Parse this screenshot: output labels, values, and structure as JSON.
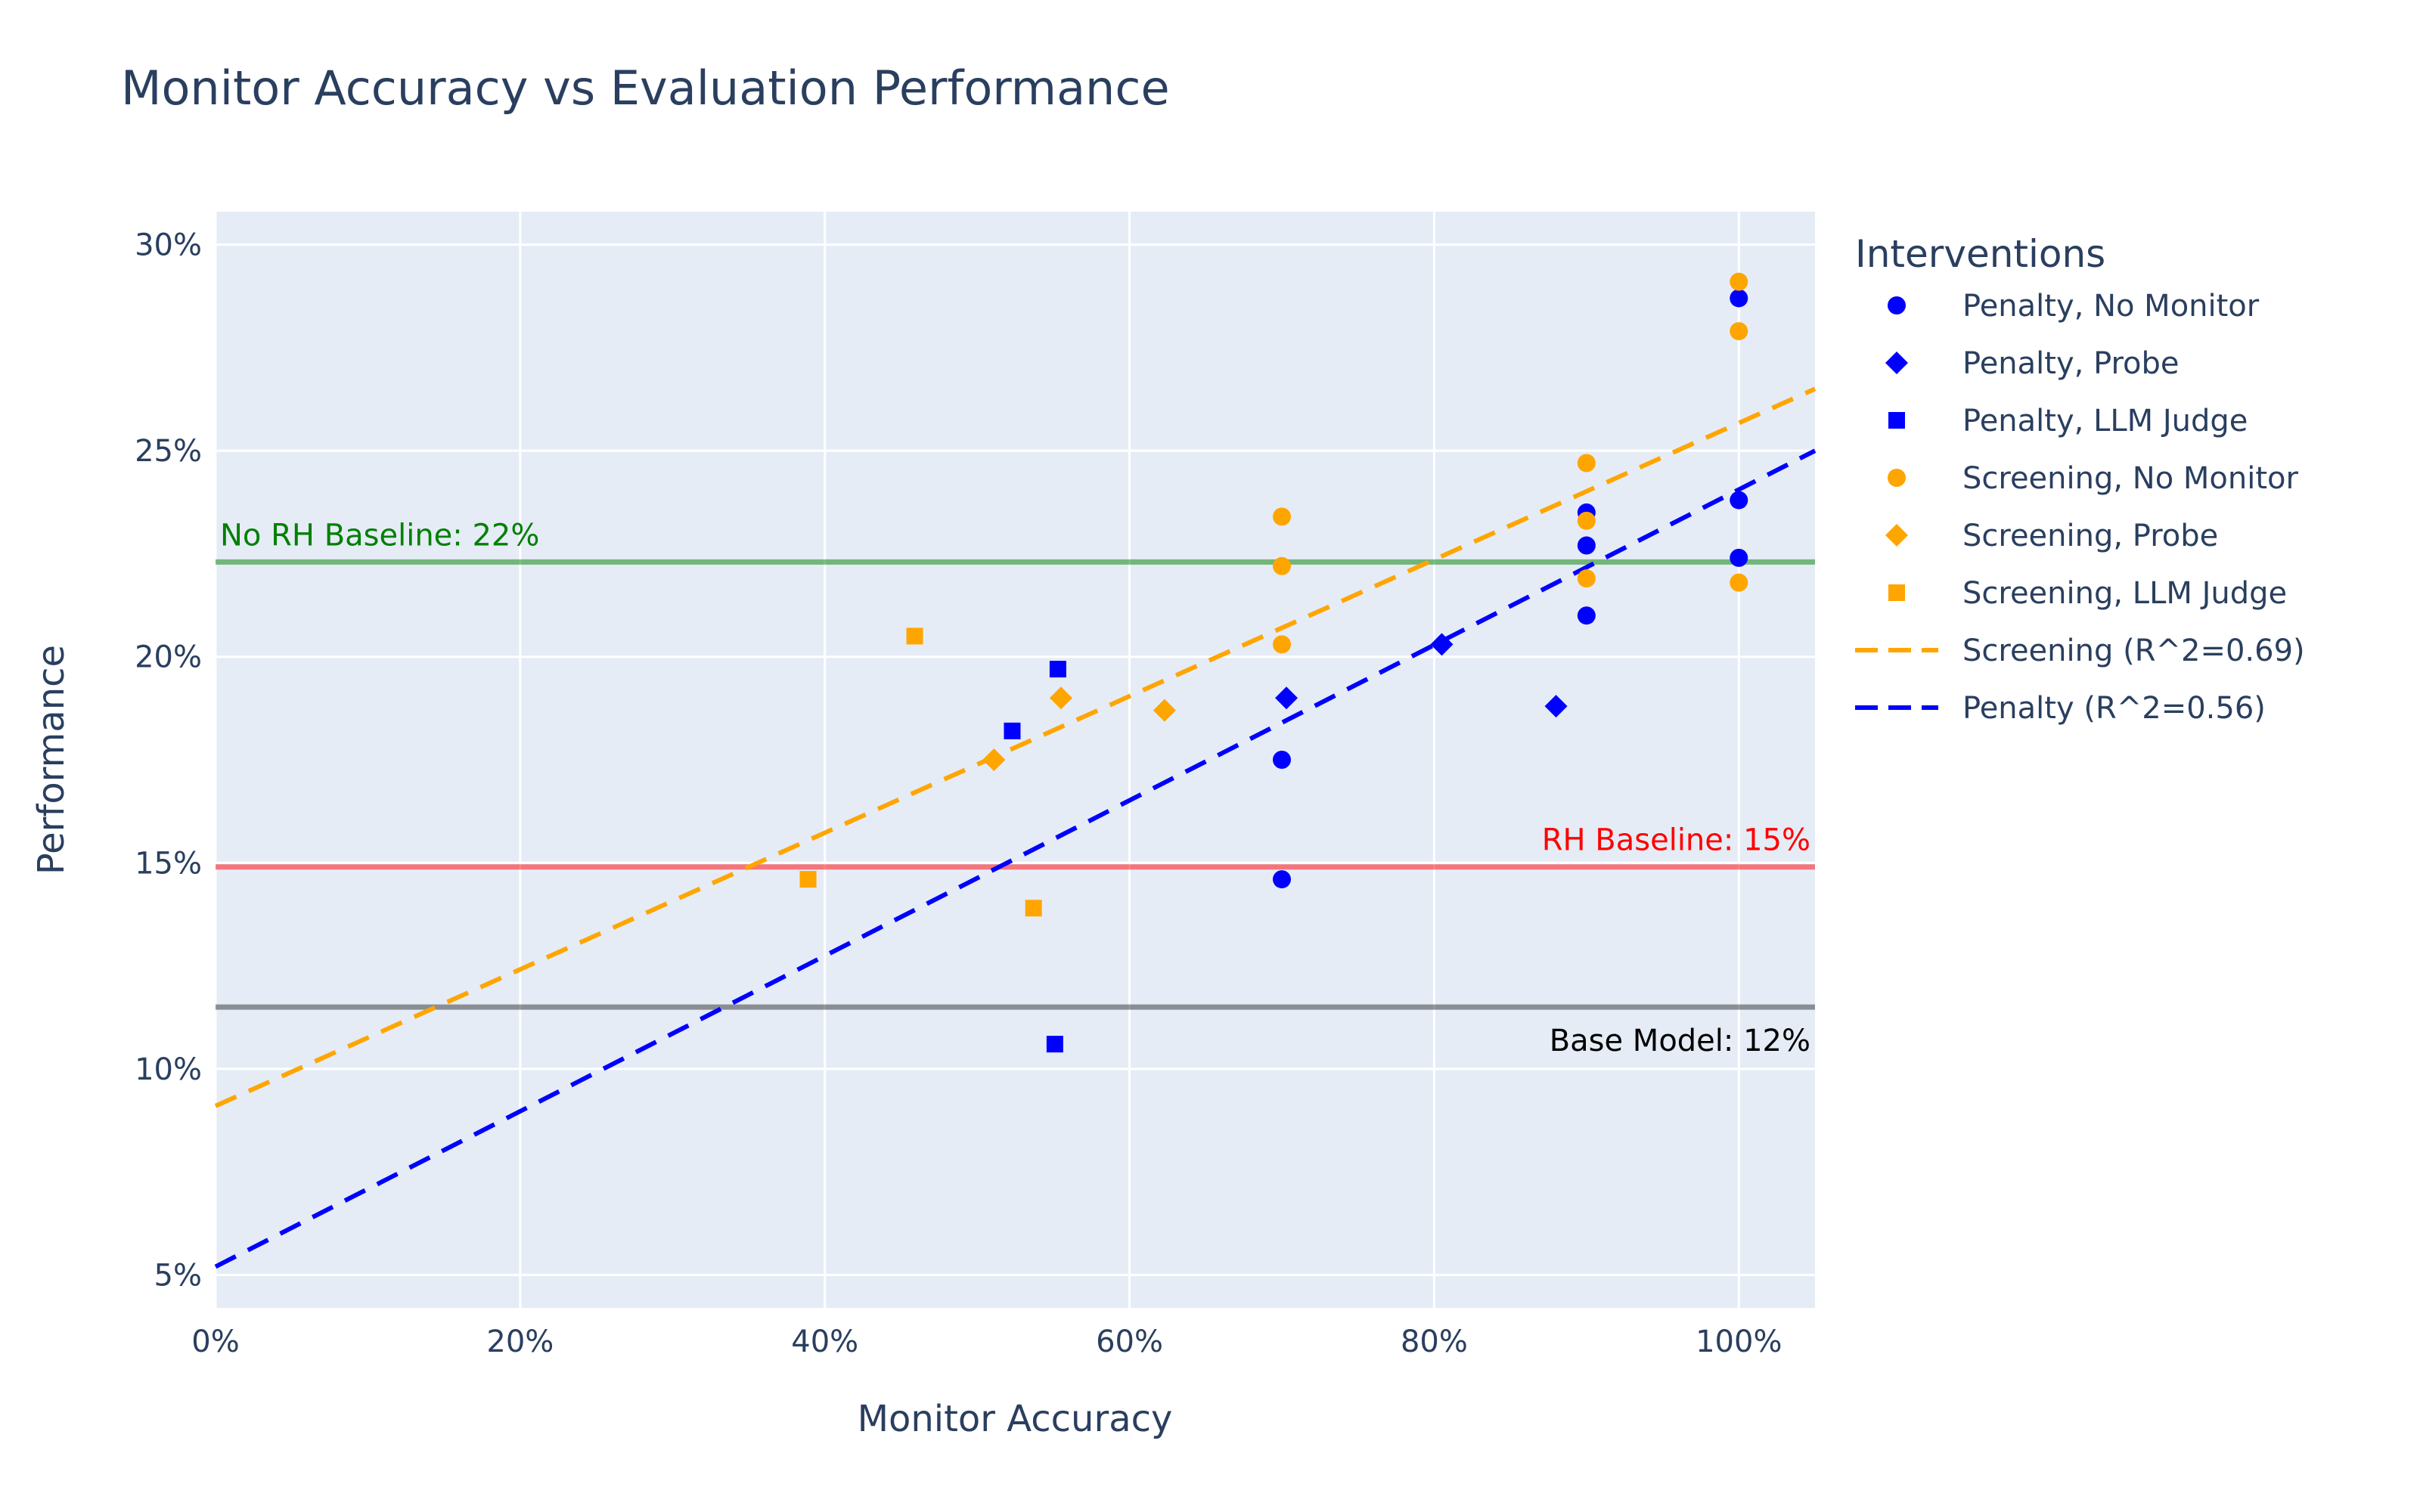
{
  "chart_data": {
    "type": "scatter",
    "title": "Monitor Accuracy vs Evaluation Performance",
    "xlabel": "Monitor Accuracy",
    "ylabel": "Performance",
    "xlim": [
      0,
      1.05
    ],
    "ylim": [
      4.2,
      30.8
    ],
    "x_ticks": [
      {
        "value": 0,
        "label": "0%"
      },
      {
        "value": 0.2,
        "label": "20%"
      },
      {
        "value": 0.4,
        "label": "40%"
      },
      {
        "value": 0.6,
        "label": "60%"
      },
      {
        "value": 0.8,
        "label": "80%"
      },
      {
        "value": 1.0,
        "label": "100%"
      }
    ],
    "y_ticks": [
      {
        "value": 5,
        "label": "5%"
      },
      {
        "value": 10,
        "label": "10%"
      },
      {
        "value": 15,
        "label": "15%"
      },
      {
        "value": 20,
        "label": "20%"
      },
      {
        "value": 25,
        "label": "25%"
      },
      {
        "value": 30,
        "label": "30%"
      }
    ],
    "grid": true,
    "legend": {
      "title": "Interventions",
      "position": "right"
    },
    "colors": {
      "penalty": "#0000ff",
      "screening": "#ffa500",
      "no_rh_baseline": "#008000",
      "rh_baseline": "#ff0000",
      "base_model": "#000000",
      "plot_bg": "#e5ecf6",
      "grid": "#ffffff"
    },
    "series": [
      {
        "name": "Penalty, No Monitor",
        "marker": "circle",
        "color": "#0000ff",
        "x": [
          0.7,
          0.7,
          0.9,
          0.9,
          0.9,
          1.0,
          1.0,
          1.0
        ],
        "y": [
          17.5,
          14.6,
          23.5,
          22.7,
          21.0,
          28.7,
          23.8,
          22.4
        ]
      },
      {
        "name": "Penalty, Probe",
        "marker": "diamond",
        "color": "#0000ff",
        "x": [
          0.703,
          0.805,
          0.88
        ],
        "y": [
          19.0,
          20.3,
          18.8
        ]
      },
      {
        "name": "Penalty, LLM Judge",
        "marker": "square",
        "color": "#0000ff",
        "x": [
          0.523,
          0.553,
          0.551
        ],
        "y": [
          18.2,
          19.7,
          10.6
        ]
      },
      {
        "name": "Screening, No Monitor",
        "marker": "circle",
        "color": "#ffa500",
        "x": [
          0.7,
          0.7,
          0.7,
          0.9,
          0.9,
          0.9,
          1.0,
          1.0,
          1.0
        ],
        "y": [
          23.4,
          22.2,
          20.3,
          24.7,
          23.3,
          21.9,
          29.1,
          27.9,
          21.8
        ]
      },
      {
        "name": "Screening, Probe",
        "marker": "diamond",
        "color": "#ffa500",
        "x": [
          0.511,
          0.555,
          0.623
        ],
        "y": [
          17.5,
          19.0,
          18.7
        ]
      },
      {
        "name": "Screening, LLM Judge",
        "marker": "square",
        "color": "#ffa500",
        "x": [
          0.389,
          0.459,
          0.537
        ],
        "y": [
          14.6,
          20.5,
          13.9
        ]
      }
    ],
    "trend_lines": [
      {
        "name": "Screening (R^2=0.69)",
        "color": "#ffa500",
        "dash": "dash",
        "x": [
          0,
          1.05
        ],
        "y": [
          9.1,
          26.5
        ]
      },
      {
        "name": "Penalty (R^2=0.56)",
        "color": "#0000ff",
        "dash": "dash",
        "x": [
          0,
          1.05
        ],
        "y": [
          5.2,
          25.0
        ]
      }
    ],
    "reference_lines": [
      {
        "y": 22.3,
        "label": "No RH Baseline: 22%",
        "color": "#008000",
        "label_anchor": "left"
      },
      {
        "y": 14.9,
        "label": "RH Baseline: 15%",
        "color": "#ff0000",
        "label_anchor": "right"
      },
      {
        "y": 11.5,
        "label": "Base Model: 12%",
        "color": "#2f2f2f",
        "label_anchor": "right-below"
      }
    ]
  }
}
